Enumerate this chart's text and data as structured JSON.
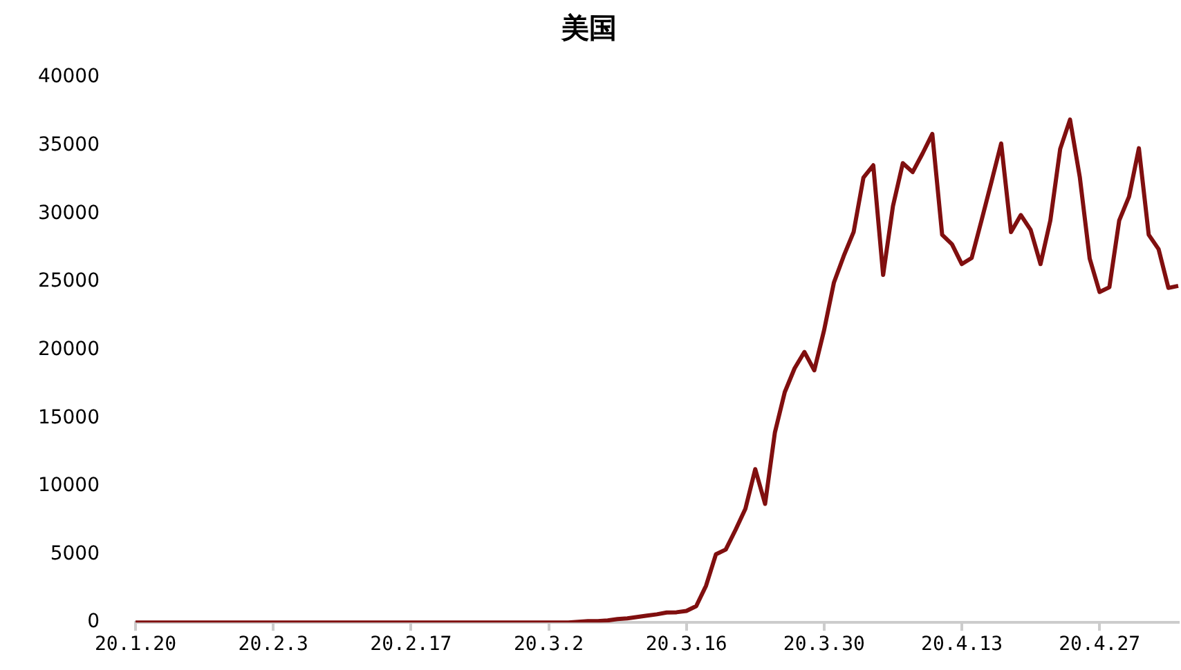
{
  "chart_data": {
    "type": "line",
    "title": "美国",
    "categories": [
      "20.1.20",
      null,
      null,
      null,
      null,
      null,
      null,
      null,
      null,
      null,
      null,
      null,
      null,
      null,
      "20.2.3",
      null,
      null,
      null,
      null,
      null,
      null,
      null,
      null,
      null,
      null,
      null,
      null,
      null,
      "20.2.17",
      null,
      null,
      null,
      null,
      null,
      null,
      null,
      null,
      null,
      null,
      null,
      null,
      null,
      "20.3.2",
      null,
      null,
      null,
      null,
      null,
      null,
      null,
      null,
      null,
      null,
      null,
      null,
      null,
      "20.3.16",
      null,
      null,
      null,
      null,
      null,
      null,
      null,
      null,
      null,
      null,
      null,
      null,
      null,
      "20.3.30",
      null,
      null,
      null,
      null,
      null,
      null,
      null,
      null,
      null,
      null,
      null,
      null,
      null,
      "20.4.13",
      null,
      null,
      null,
      null,
      null,
      null,
      null,
      null,
      null,
      null,
      null,
      null,
      null,
      "20.4.27",
      null,
      null,
      null,
      null,
      null,
      null,
      null,
      null
    ],
    "series": [
      {
        "color": "#800f0f",
        "values": [
          0,
          0,
          0,
          0,
          0,
          0,
          0,
          0,
          0,
          0,
          0,
          0,
          0,
          0,
          0,
          0,
          0,
          0,
          0,
          0,
          0,
          0,
          0,
          0,
          0,
          0,
          0,
          0,
          0,
          0,
          0,
          0,
          0,
          0,
          0,
          0,
          0,
          0,
          0,
          0,
          0,
          0,
          0,
          0,
          0,
          50,
          100,
          100,
          150,
          250,
          300,
          400,
          500,
          600,
          730,
          750,
          850,
          1200,
          2700,
          5000,
          5350,
          6800,
          8350,
          11250,
          8700,
          13950,
          16900,
          18650,
          19850,
          18500,
          21450,
          24950,
          26900,
          28650,
          32650,
          33550,
          25500,
          30550,
          33700,
          33050,
          34400,
          35850,
          28450,
          27750,
          26300,
          26750,
          29500,
          32300,
          35150,
          28650,
          29900,
          28800,
          26300,
          29500,
          34750,
          36900,
          32650,
          26700,
          24250,
          24600,
          29500,
          31250,
          34800,
          28450,
          27400,
          24550,
          24700
        ]
      }
    ],
    "ylim": [
      0,
      40000
    ],
    "yticks": [
      0,
      5000,
      10000,
      15000,
      20000,
      25000,
      30000,
      35000,
      40000
    ],
    "grid": false,
    "legend": false,
    "marker": "none",
    "line_style": "solid"
  }
}
